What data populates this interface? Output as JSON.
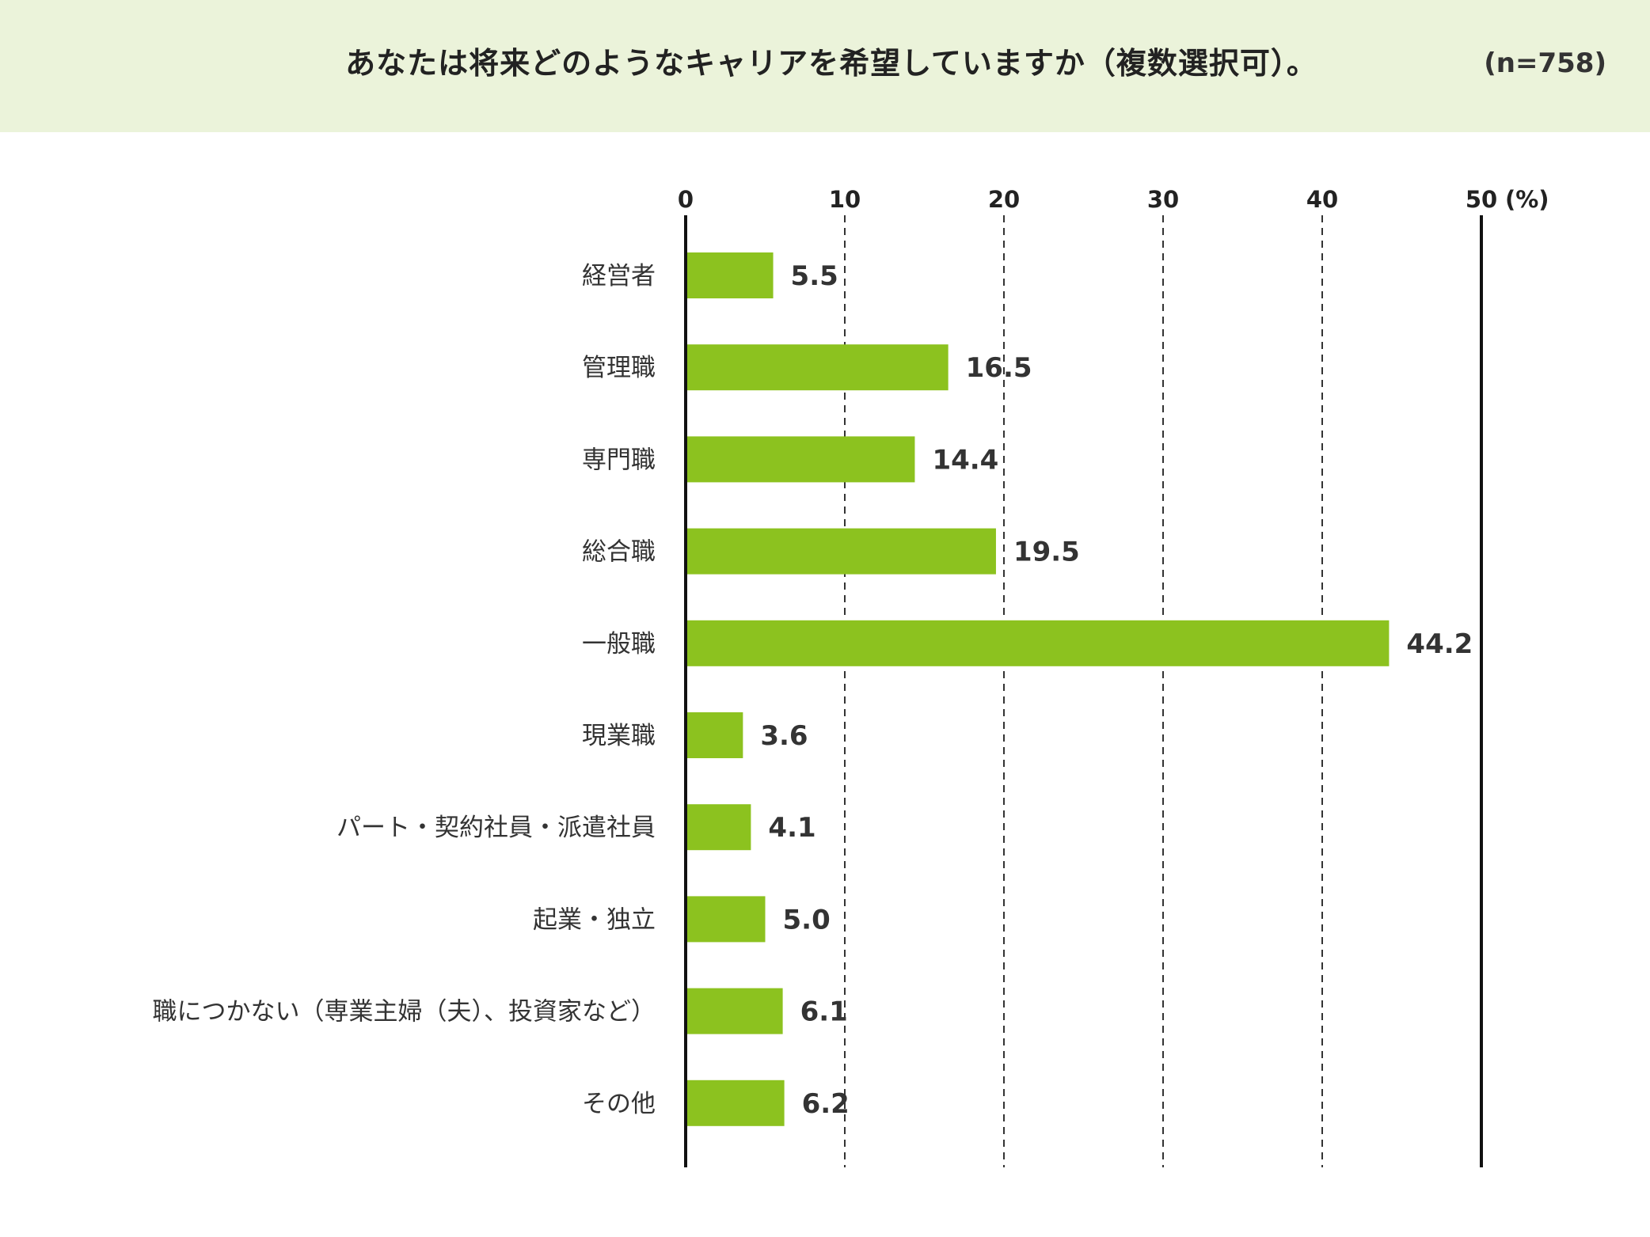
{
  "chart_data": {
    "type": "bar",
    "orientation": "horizontal",
    "title": "あなたは将来どのようなキャリアを希望していますか（複数選択可）。",
    "sample_size": "(n=758)",
    "unit_label": "(%)",
    "categories": [
      "経営者",
      "管理職",
      "専門職",
      "総合職",
      "一般職",
      "現業職",
      "パート・契約社員・派遣社員",
      "起業・独立",
      "職につかない（専業主婦（夫）、投資家など）",
      "その他"
    ],
    "values": [
      5.5,
      16.5,
      14.4,
      19.5,
      44.2,
      3.6,
      4.1,
      5.0,
      6.1,
      6.2
    ],
    "value_labels": [
      "5.5",
      "16.5",
      "14.4",
      "19.5",
      "44.2",
      "3.6",
      "4.1",
      "5.0",
      "6.1",
      "6.2"
    ],
    "xlim": [
      0,
      50
    ],
    "ticks": [
      0,
      10,
      20,
      30,
      40,
      50
    ],
    "tick_labels": [
      "0",
      "10",
      "20",
      "30",
      "40",
      "50"
    ],
    "grid": "dashed vertical",
    "colors": {
      "bar": "#8cc21f",
      "header_bg": "#ebf3da",
      "axis": "#111111",
      "grid": "#333333",
      "text": "#222222"
    }
  }
}
